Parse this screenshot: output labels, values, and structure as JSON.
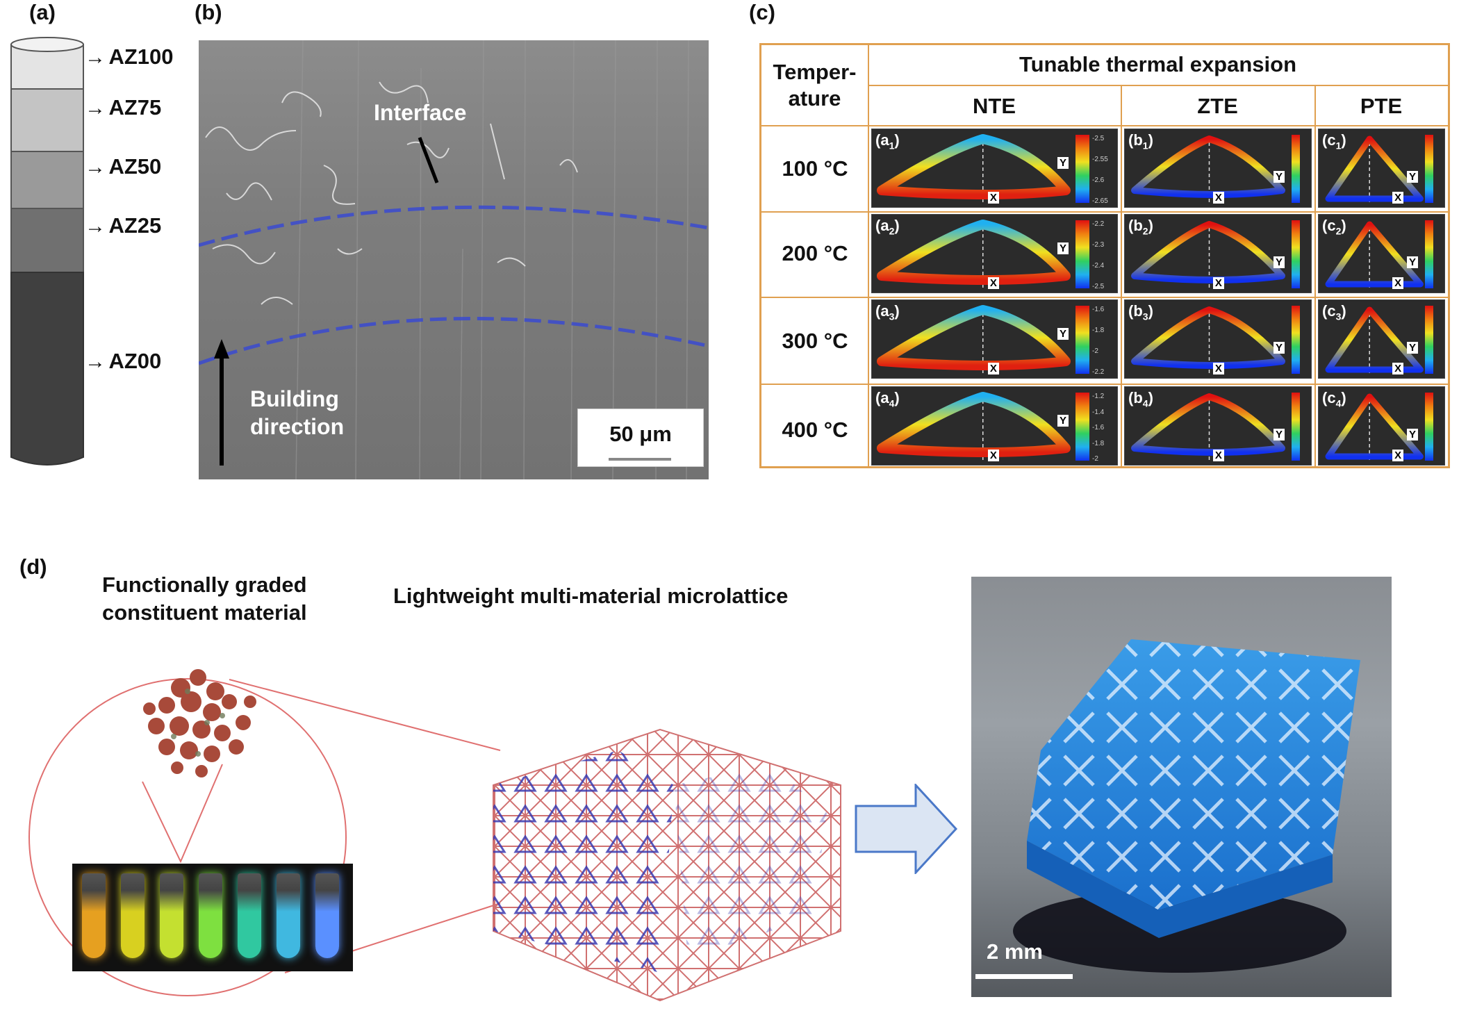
{
  "panel_labels": {
    "a": "(a)",
    "b": "(b)",
    "c": "(c)",
    "d": "(d)"
  },
  "panel_a": {
    "layers": [
      {
        "label": "AZ100",
        "color": "#d8d8d8"
      },
      {
        "label": "AZ75",
        "color": "#bdbdbd"
      },
      {
        "label": "AZ50",
        "color": "#8f8f8f"
      },
      {
        "label": "AZ25",
        "color": "#6b6b6b"
      },
      {
        "label": "AZ00",
        "color": "#404040"
      }
    ]
  },
  "panel_b": {
    "interface_label": "Interface",
    "building_direction_label": [
      "Building",
      "direction"
    ],
    "scale_bar": "50 μm"
  },
  "panel_c": {
    "corner_header": [
      "Temper-",
      "ature"
    ],
    "group_header": "Tunable thermal expansion",
    "columns": [
      "NTE",
      "ZTE",
      "PTE"
    ],
    "rows": [
      {
        "temperature": "100 °C",
        "tags": [
          "(a",
          "(b",
          "(c"
        ],
        "sub": "1"
      },
      {
        "temperature": "200 °C",
        "tags": [
          "(a",
          "(b",
          "(c"
        ],
        "sub": "2"
      },
      {
        "temperature": "300 °C",
        "tags": [
          "(a",
          "(b",
          "(c"
        ],
        "sub": "3"
      },
      {
        "temperature": "400 °C",
        "tags": [
          "(a",
          "(b",
          "(c"
        ],
        "sub": "4"
      }
    ],
    "nte_colorbar_ticks": [
      [
        "-2.5",
        "-2.55",
        "-2.6",
        "-2.65"
      ],
      [
        "-2.2",
        "-2.3",
        "-2.4",
        "-2.5"
      ],
      [
        "-1.6",
        "-1.8",
        "-2",
        "-2.2"
      ],
      [
        "-1.2",
        "-1.4",
        "-1.6",
        "-1.8",
        "-2"
      ]
    ],
    "axis_x": "X",
    "axis_y": "Y"
  },
  "panel_d": {
    "title_left": [
      "Functionally graded",
      "constituent material"
    ],
    "title_center": "Lightweight multi-material microlattice",
    "vial_colors": [
      "#e6a020",
      "#d8d020",
      "#c4e030",
      "#7ee040",
      "#30c8a0",
      "#40b8e0",
      "#5a90ff"
    ],
    "scale_bar": "2 mm"
  }
}
